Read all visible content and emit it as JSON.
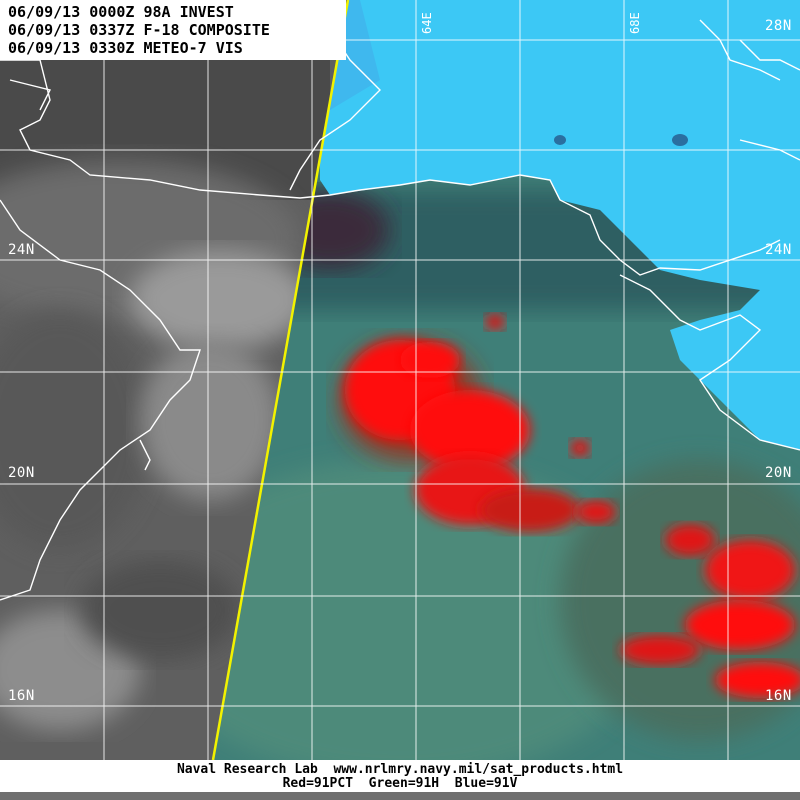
{
  "header": {
    "lines": [
      "06/09/13 0000Z 98A INVEST",
      "06/09/13 0337Z F-18 COMPOSITE",
      "06/09/13 0330Z METEO-7 VIS"
    ]
  },
  "map": {
    "latitude_labels": [
      "28N",
      "24N",
      "24N",
      "20N",
      "20N",
      "16N",
      "16N"
    ],
    "longitude_labels": [
      "64E",
      "68E"
    ],
    "colors": {
      "vis_gray": "#6e6e6e",
      "land_cyan": "#3cc8f5",
      "ocean_teal": "#3f7f78",
      "convection_red": "#ff1010",
      "grid_white": "#ffffff",
      "swath_edge_yellow": "#f2f200"
    }
  },
  "footer": {
    "credit": "Naval Research Lab  www.nrlmry.navy.mil/sat_products.html",
    "channels": "Red=91PCT  Green=91H  Blue=91V"
  }
}
